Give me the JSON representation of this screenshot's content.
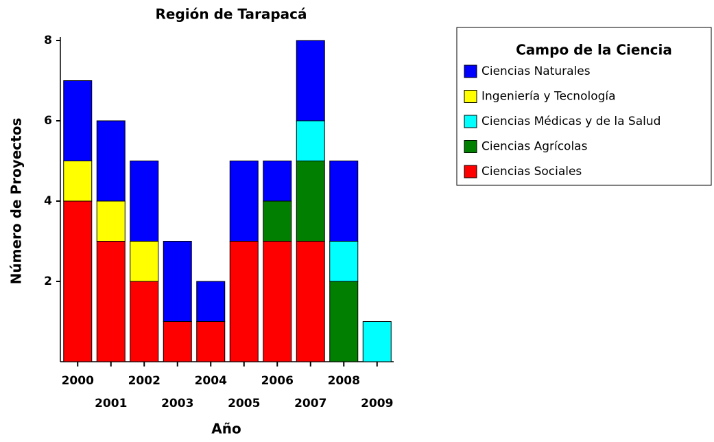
{
  "chart_data": {
    "type": "stacked_bar",
    "title": "Región de Tarapacá",
    "x_label": "Año",
    "y_label": "Número de Proyectos",
    "legend_title": "Campo de la Ciencia",
    "legend_position": "right",
    "categories": [
      "2000",
      "2001",
      "2002",
      "2003",
      "2004",
      "2005",
      "2006",
      "2007",
      "2008",
      "2009"
    ],
    "series": [
      {
        "name": "Ciencias Naturales",
        "color": "#0000ff",
        "values": [
          2,
          2,
          2,
          2,
          1,
          2,
          1,
          2,
          2,
          0
        ]
      },
      {
        "name": "Ingeniería y Tecnología",
        "color": "#ffff00",
        "values": [
          1,
          1,
          1,
          0,
          0,
          0,
          0,
          0,
          0,
          0
        ]
      },
      {
        "name": "Ciencias Médicas y de la Salud",
        "color": "#00ffff",
        "values": [
          0,
          0,
          0,
          0,
          0,
          0,
          0,
          1,
          1,
          1
        ]
      },
      {
        "name": "Ciencias Agrícolas",
        "color": "#007f00",
        "values": [
          0,
          0,
          0,
          0,
          0,
          0,
          1,
          2,
          2,
          0
        ]
      },
      {
        "name": "Ciencias Sociales",
        "color": "#ff0000",
        "values": [
          4,
          3,
          2,
          1,
          1,
          3,
          3,
          3,
          0,
          0
        ]
      }
    ],
    "ylim": [
      0,
      8
    ],
    "yticks": [
      2,
      4,
      6,
      8
    ]
  }
}
